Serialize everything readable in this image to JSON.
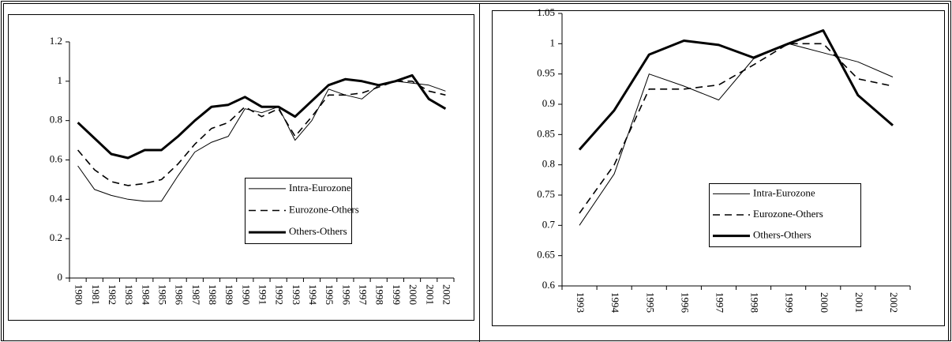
{
  "chart_data": [
    {
      "type": "line",
      "categories": [
        "1980",
        "1981",
        "1982",
        "1983",
        "1984",
        "1985",
        "1986",
        "1987",
        "1988",
        "1989",
        "1990",
        "1991",
        "1992",
        "1993",
        "1994",
        "1995",
        "1996",
        "1997",
        "1998",
        "1999",
        "2000",
        "2001",
        "2002"
      ],
      "ylim": [
        0,
        1.2
      ],
      "yticks": [
        0,
        0.2,
        0.4,
        0.6,
        0.8,
        1,
        1.2
      ],
      "series": [
        {
          "name": "Intra-Eurozone",
          "color": "#000000",
          "values": [
            0.57,
            0.45,
            0.42,
            0.4,
            0.39,
            0.39,
            0.52,
            0.64,
            0.69,
            0.72,
            0.86,
            0.84,
            0.87,
            0.7,
            0.8,
            0.96,
            0.93,
            0.91,
            0.98,
            1.0,
            0.99,
            0.98,
            0.95
          ]
        },
        {
          "name": "Eurozone-Others",
          "color": "#000000",
          "values": [
            0.65,
            0.55,
            0.49,
            0.47,
            0.48,
            0.5,
            0.58,
            0.68,
            0.76,
            0.79,
            0.87,
            0.82,
            0.86,
            0.72,
            0.82,
            0.93,
            0.93,
            0.94,
            0.97,
            1.0,
            1.0,
            0.95,
            0.93
          ]
        },
        {
          "name": "Others-Others",
          "color": "#000000",
          "values": [
            0.79,
            0.71,
            0.63,
            0.61,
            0.65,
            0.65,
            0.72,
            0.8,
            0.87,
            0.88,
            0.92,
            0.87,
            0.87,
            0.82,
            0.9,
            0.98,
            1.01,
            1.0,
            0.98,
            1.0,
            1.03,
            0.91,
            0.86
          ]
        }
      ]
    },
    {
      "type": "line",
      "categories": [
        "1993",
        "1994",
        "1995",
        "1996",
        "1997",
        "1998",
        "1999",
        "2000",
        "2001",
        "2002"
      ],
      "ylim": [
        0.6,
        1.05
      ],
      "yticks": [
        0.6,
        0.65,
        0.7,
        0.75,
        0.8,
        0.85,
        0.9,
        0.95,
        1,
        1.05
      ],
      "series": [
        {
          "name": "Intra-Eurozone",
          "color": "#000000",
          "values": [
            0.7,
            0.785,
            0.95,
            0.93,
            0.907,
            0.975,
            1.0,
            0.985,
            0.97,
            0.945
          ]
        },
        {
          "name": "Eurozone-Others",
          "color": "#000000",
          "values": [
            0.72,
            0.8,
            0.925,
            0.925,
            0.932,
            0.965,
            1.0,
            1.0,
            0.942,
            0.93
          ]
        },
        {
          "name": "Others-Others",
          "color": "#000000",
          "values": [
            0.825,
            0.89,
            0.982,
            1.005,
            0.998,
            0.977,
            1.0,
            1.022,
            0.915,
            0.865
          ]
        }
      ]
    }
  ]
}
